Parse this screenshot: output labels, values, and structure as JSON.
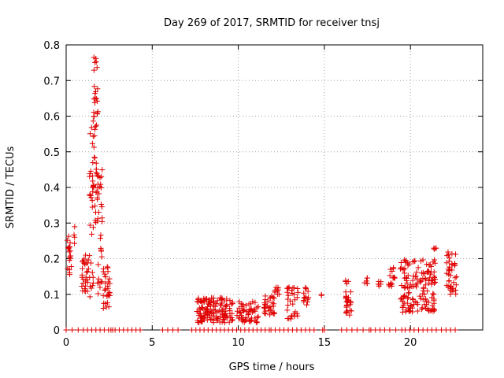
{
  "chart_data": {
    "type": "scatter",
    "title": "Day 269 of 2017, SRMTID for receiver tnsj",
    "xlabel": "GPS time / hours",
    "ylabel": "SRMTID / TECUs",
    "xlim": [
      0,
      24.2
    ],
    "ylim": [
      0,
      0.8
    ],
    "x_ticks": [
      0,
      5,
      10,
      15,
      20
    ],
    "x_tick_labels": [
      "0",
      "5",
      "10",
      "15",
      "20"
    ],
    "y_ticks": [
      0,
      0.1,
      0.2,
      0.3,
      0.4,
      0.5,
      0.6,
      0.7,
      0.8
    ],
    "y_tick_labels": [
      "0",
      "0.1",
      "0.2",
      "0.3",
      "0.4",
      "0.5",
      "0.6",
      "0.7",
      "0.8"
    ],
    "grid": true,
    "marker": "plus",
    "color": "#e00000",
    "series": [
      {
        "name": "SRMTID",
        "clusters": [
          {
            "x": [
              0.05,
              0.3
            ],
            "y": [
              0.15,
              0.27
            ],
            "n": 18
          },
          {
            "x": [
              0.45,
              0.55
            ],
            "y": [
              0.24,
              0.29
            ],
            "n": 4
          },
          {
            "x": [
              0.9,
              1.3
            ],
            "y": [
              0.1,
              0.21
            ],
            "n": 30
          },
          {
            "x": [
              1.35,
              1.6
            ],
            "y": [
              0.08,
              0.6
            ],
            "n": 35
          },
          {
            "x": [
              1.6,
              1.85
            ],
            "y": [
              0.3,
              0.77
            ],
            "n": 45
          },
          {
            "x": [
              1.8,
              2.1
            ],
            "y": [
              0.1,
              0.45
            ],
            "n": 30
          },
          {
            "x": [
              2.1,
              2.55
            ],
            "y": [
              0.06,
              0.18
            ],
            "n": 30
          },
          {
            "x": [
              7.6,
              9.7
            ],
            "y": [
              0.02,
              0.09
            ],
            "n": 140
          },
          {
            "x": [
              9.9,
              11.2
            ],
            "y": [
              0.02,
              0.08
            ],
            "n": 55
          },
          {
            "x": [
              11.5,
              12.1
            ],
            "y": [
              0.04,
              0.1
            ],
            "n": 30
          },
          {
            "x": [
              12.1,
              12.4
            ],
            "y": [
              0.1,
              0.125
            ],
            "n": 10
          },
          {
            "x": [
              12.8,
              13.5
            ],
            "y": [
              0.03,
              0.12
            ],
            "n": 30
          },
          {
            "x": [
              13.8,
              14.1
            ],
            "y": [
              0.07,
              0.12
            ],
            "n": 14
          },
          {
            "x": [
              14.8,
              14.9
            ],
            "y": [
              0.095,
              0.1
            ],
            "n": 2
          },
          {
            "x": [
              16.2,
              16.6
            ],
            "y": [
              0.04,
              0.14
            ],
            "n": 30
          },
          {
            "x": [
              17.3,
              17.5
            ],
            "y": [
              0.13,
              0.155
            ],
            "n": 6
          },
          {
            "x": [
              18.1,
              18.3
            ],
            "y": [
              0.12,
              0.14
            ],
            "n": 6
          },
          {
            "x": [
              18.7,
              19.1
            ],
            "y": [
              0.12,
              0.18
            ],
            "n": 16
          },
          {
            "x": [
              19.4,
              21.5
            ],
            "y": [
              0.05,
              0.2
            ],
            "n": 150
          },
          {
            "x": [
              21.35,
              21.5
            ],
            "y": [
              0.22,
              0.23
            ],
            "n": 4
          },
          {
            "x": [
              22.1,
              22.7
            ],
            "y": [
              0.1,
              0.22
            ],
            "n": 40
          }
        ],
        "zero_runs": [
          [
            0.0,
            0.7
          ],
          [
            1.0,
            2.7
          ],
          [
            2.6,
            4.3
          ],
          [
            5.6,
            6.5
          ],
          [
            7.3,
            11.8
          ],
          [
            11.9,
            12.9
          ],
          [
            12.9,
            14.4
          ],
          [
            14.9,
            15.0
          ],
          [
            16.0,
            16.6
          ],
          [
            16.9,
            17.6
          ],
          [
            17.7,
            18.5
          ],
          [
            18.8,
            19.5
          ],
          [
            19.7,
            21.5
          ],
          [
            21.8,
            22.6
          ]
        ]
      }
    ]
  }
}
